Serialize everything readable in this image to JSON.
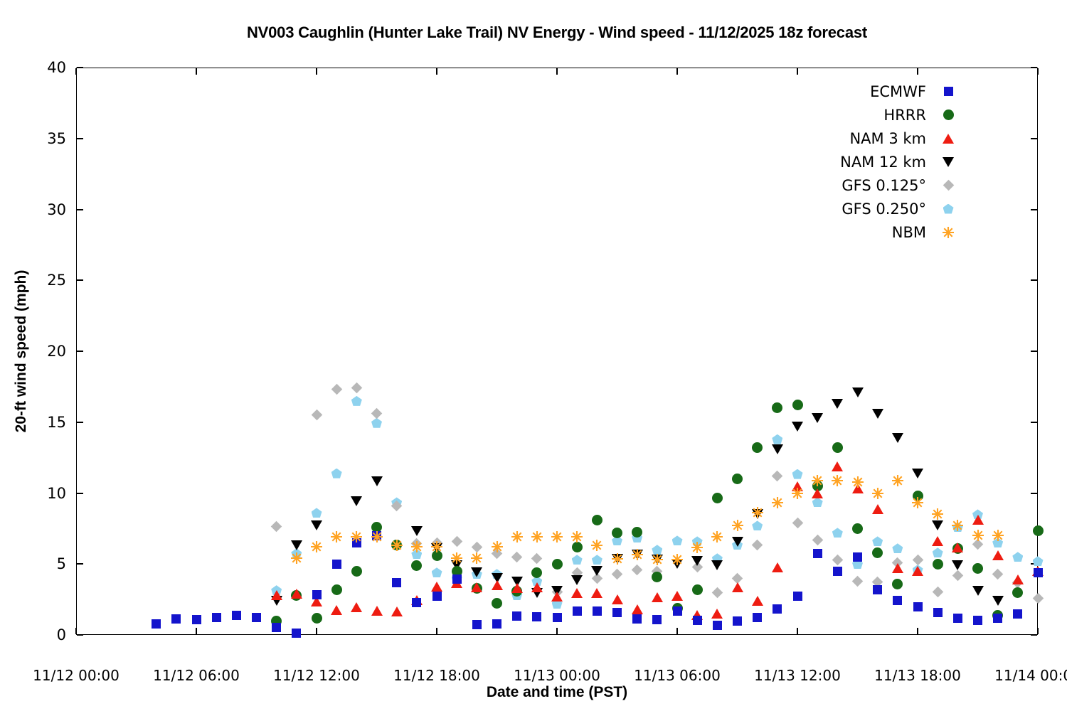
{
  "title": {
    "text": "NV003 Caughlin (Hunter Lake Trail) NV Energy - Wind speed - 11/12/2025 18z forecast"
  },
  "axes": {
    "x_label": "Date and time (PST)",
    "y_label": "20-ft wind speed (mph)",
    "x_ticks": [
      {
        "hour": 0,
        "label": "11/12 00:00"
      },
      {
        "hour": 6,
        "label": "11/12 06:00"
      },
      {
        "hour": 12,
        "label": "11/12 12:00"
      },
      {
        "hour": 18,
        "label": "11/12 18:00"
      },
      {
        "hour": 24,
        "label": "11/13 00:00"
      },
      {
        "hour": 30,
        "label": "11/13 06:00"
      },
      {
        "hour": 36,
        "label": "11/13 12:00"
      },
      {
        "hour": 42,
        "label": "11/13 18:00"
      },
      {
        "hour": 48,
        "label": "11/14 00:00"
      }
    ],
    "y_ticks": [
      0,
      5,
      10,
      15,
      20,
      25,
      30,
      35,
      40
    ],
    "y_range": [
      0,
      40
    ],
    "x_range_hours": [
      0,
      48
    ]
  },
  "legend": {
    "items": [
      {
        "label": "ECMWF",
        "shape": "square",
        "color": "#1414cc"
      },
      {
        "label": "HRRR",
        "shape": "circle",
        "color": "#176a17"
      },
      {
        "label": "NAM 3 km",
        "shape": "triangle-up",
        "color": "#ee1c11"
      },
      {
        "label": "NAM 12 km",
        "shape": "triangle-down",
        "color": "#000000"
      },
      {
        "label": "GFS 0.125°",
        "shape": "diamond",
        "color": "#b8b8b8"
      },
      {
        "label": "GFS 0.250°",
        "shape": "pentagon",
        "color": "#8ed2ee"
      },
      {
        "label": "NBM",
        "shape": "asterisk",
        "color": "#ffa323"
      }
    ]
  },
  "chart_data": {
    "type": "scatter",
    "title": "NV003 Caughlin (Hunter Lake Trail) NV Energy - Wind speed - 11/12/2025 18z forecast",
    "xlabel": "Date and time (PST)",
    "ylabel": "20-ft wind speed (mph)",
    "x_unit": "hours since 11/12 00:00 PST",
    "ylim": [
      0,
      40
    ],
    "xlim_hours": [
      0,
      48
    ],
    "grid": false,
    "legend_position": "top-right-inside",
    "series": [
      {
        "name": "ECMWF",
        "shape": "square",
        "color": "#1414cc",
        "points": [
          [
            4,
            0.8
          ],
          [
            5,
            1.15
          ],
          [
            6,
            1.1
          ],
          [
            7,
            1.25
          ],
          [
            8,
            1.4
          ],
          [
            9,
            1.25
          ],
          [
            10,
            0.55
          ],
          [
            11,
            0.15
          ],
          [
            12,
            2.85
          ],
          [
            13,
            5.0
          ],
          [
            14,
            6.5
          ],
          [
            15,
            7.0
          ],
          [
            16,
            3.7
          ],
          [
            17,
            2.3
          ],
          [
            18,
            2.75
          ],
          [
            19,
            3.95
          ],
          [
            20,
            0.75
          ],
          [
            21,
            0.8
          ],
          [
            22,
            1.35
          ],
          [
            23,
            1.3
          ],
          [
            24,
            1.25
          ],
          [
            25,
            1.7
          ],
          [
            26,
            1.7
          ],
          [
            27,
            1.6
          ],
          [
            28,
            1.15
          ],
          [
            29,
            1.1
          ],
          [
            30,
            1.7
          ],
          [
            31,
            1.05
          ],
          [
            32,
            0.7
          ],
          [
            33,
            1.0
          ],
          [
            34,
            1.25
          ],
          [
            35,
            1.85
          ],
          [
            36,
            2.75
          ],
          [
            37,
            5.75
          ],
          [
            38,
            4.5
          ],
          [
            39,
            5.5
          ],
          [
            40,
            3.2
          ],
          [
            41,
            2.45
          ],
          [
            42,
            2.0
          ],
          [
            43,
            1.6
          ],
          [
            44,
            1.2
          ],
          [
            45,
            1.05
          ],
          [
            46,
            1.2
          ],
          [
            47,
            1.5
          ],
          [
            48,
            4.4
          ]
        ]
      },
      {
        "name": "HRRR",
        "shape": "circle",
        "color": "#176a17",
        "points": [
          [
            10,
            1.0
          ],
          [
            11,
            2.8
          ],
          [
            12,
            1.2
          ],
          [
            13,
            3.2
          ],
          [
            14,
            4.5
          ],
          [
            15,
            7.6
          ],
          [
            16,
            6.35
          ],
          [
            17,
            4.9
          ],
          [
            18,
            5.6
          ],
          [
            19,
            4.5
          ],
          [
            20,
            3.3
          ],
          [
            21,
            2.25
          ],
          [
            22,
            3.1
          ],
          [
            23,
            4.4
          ],
          [
            24,
            5.0
          ],
          [
            25,
            6.2
          ],
          [
            26,
            8.1
          ],
          [
            27,
            7.2
          ],
          [
            28,
            7.25
          ],
          [
            29,
            4.1
          ],
          [
            30,
            1.9
          ],
          [
            31,
            3.2
          ],
          [
            32,
            9.65
          ],
          [
            33,
            11.0
          ],
          [
            34,
            13.2
          ],
          [
            35,
            16.0
          ],
          [
            36,
            16.2
          ],
          [
            37,
            10.5
          ],
          [
            38,
            13.2
          ],
          [
            39,
            7.5
          ],
          [
            40,
            5.8
          ],
          [
            41,
            3.6
          ],
          [
            42,
            9.8
          ],
          [
            43,
            5.0
          ],
          [
            44,
            6.1
          ],
          [
            45,
            4.7
          ],
          [
            46,
            1.4
          ],
          [
            47,
            3.0
          ],
          [
            48,
            7.35
          ]
        ]
      },
      {
        "name": "NAM 3 km",
        "shape": "triangle-up",
        "color": "#ee1c11",
        "points": [
          [
            10,
            2.8
          ],
          [
            11,
            2.9
          ],
          [
            12,
            2.35
          ],
          [
            13,
            1.75
          ],
          [
            14,
            1.95
          ],
          [
            15,
            1.7
          ],
          [
            16,
            1.65
          ],
          [
            17,
            2.45
          ],
          [
            18,
            3.4
          ],
          [
            19,
            3.65
          ],
          [
            20,
            3.35
          ],
          [
            21,
            3.5
          ],
          [
            22,
            3.3
          ],
          [
            23,
            3.35
          ],
          [
            24,
            2.7
          ],
          [
            25,
            2.95
          ],
          [
            26,
            2.95
          ],
          [
            27,
            2.5
          ],
          [
            28,
            1.8
          ],
          [
            29,
            2.65
          ],
          [
            30,
            2.75
          ],
          [
            31,
            1.4
          ],
          [
            32,
            1.5
          ],
          [
            33,
            3.35
          ],
          [
            34,
            2.4
          ],
          [
            35,
            4.75
          ],
          [
            36,
            10.5
          ],
          [
            37,
            10.0
          ],
          [
            38,
            11.9
          ],
          [
            39,
            10.35
          ],
          [
            40,
            8.85
          ],
          [
            41,
            4.7
          ],
          [
            42,
            4.5
          ],
          [
            43,
            6.6
          ],
          [
            44,
            6.15
          ],
          [
            45,
            8.1
          ],
          [
            46,
            5.6
          ],
          [
            47,
            3.9
          ],
          [
            48,
            4.5
          ]
        ]
      },
      {
        "name": "NAM 12 km",
        "shape": "triangle-down",
        "color": "#000000",
        "points": [
          [
            10,
            2.4
          ],
          [
            11,
            6.3
          ],
          [
            12,
            7.7
          ],
          [
            14,
            9.4
          ],
          [
            15,
            10.85
          ],
          [
            17,
            7.3
          ],
          [
            18,
            6.1
          ],
          [
            19,
            4.9
          ],
          [
            20,
            4.4
          ],
          [
            21,
            4.0
          ],
          [
            22,
            3.75
          ],
          [
            23,
            2.95
          ],
          [
            24,
            3.1
          ],
          [
            25,
            3.85
          ],
          [
            26,
            4.5
          ],
          [
            27,
            5.35
          ],
          [
            28,
            5.65
          ],
          [
            29,
            5.3
          ],
          [
            30,
            5.0
          ],
          [
            31,
            5.2
          ],
          [
            32,
            4.9
          ],
          [
            33,
            6.55
          ],
          [
            34,
            8.5
          ],
          [
            35,
            13.1
          ],
          [
            36,
            14.7
          ],
          [
            37,
            15.3
          ],
          [
            38,
            16.3
          ],
          [
            39,
            17.1
          ],
          [
            40,
            15.6
          ],
          [
            41,
            13.9
          ],
          [
            42,
            11.4
          ],
          [
            43,
            7.7
          ],
          [
            44,
            4.9
          ],
          [
            45,
            3.1
          ],
          [
            46,
            2.4
          ]
        ]
      },
      {
        "name": "GFS 0.125°",
        "shape": "diamond",
        "color": "#b8b8b8",
        "points": [
          [
            10,
            7.65
          ],
          [
            12,
            15.5
          ],
          [
            13,
            17.3
          ],
          [
            14,
            17.4
          ],
          [
            15,
            15.6
          ],
          [
            16,
            9.1
          ],
          [
            17,
            6.45
          ],
          [
            18,
            6.5
          ],
          [
            19,
            6.6
          ],
          [
            20,
            6.2
          ],
          [
            21,
            5.75
          ],
          [
            22,
            5.5
          ],
          [
            23,
            5.4
          ],
          [
            24,
            3.05
          ],
          [
            25,
            4.4
          ],
          [
            26,
            4.0
          ],
          [
            27,
            4.3
          ],
          [
            28,
            4.6
          ],
          [
            29,
            4.5
          ],
          [
            31,
            4.8
          ],
          [
            32,
            3.0
          ],
          [
            33,
            4.0
          ],
          [
            34,
            6.35
          ],
          [
            35,
            11.2
          ],
          [
            36,
            7.9
          ],
          [
            37,
            6.7
          ],
          [
            38,
            5.3
          ],
          [
            39,
            3.8
          ],
          [
            40,
            3.75
          ],
          [
            41,
            5.1
          ],
          [
            42,
            5.3
          ],
          [
            43,
            3.05
          ],
          [
            44,
            4.2
          ],
          [
            45,
            6.4
          ],
          [
            46,
            4.3
          ],
          [
            47,
            3.7
          ],
          [
            48,
            2.6
          ]
        ]
      },
      {
        "name": "GFS 0.250°",
        "shape": "pentagon",
        "color": "#8ed2ee",
        "points": [
          [
            10,
            3.15
          ],
          [
            11,
            5.75
          ],
          [
            12,
            8.6
          ],
          [
            13,
            11.4
          ],
          [
            14,
            16.5
          ],
          [
            15,
            14.95
          ],
          [
            16,
            9.35
          ],
          [
            17,
            5.7
          ],
          [
            18,
            4.4
          ],
          [
            19,
            4.0
          ],
          [
            20,
            4.3
          ],
          [
            21,
            4.3
          ],
          [
            22,
            2.8
          ],
          [
            23,
            3.8
          ],
          [
            24,
            2.2
          ],
          [
            25,
            5.3
          ],
          [
            26,
            5.3
          ],
          [
            27,
            6.65
          ],
          [
            28,
            6.85
          ],
          [
            29,
            6.0
          ],
          [
            30,
            6.65
          ],
          [
            31,
            6.6
          ],
          [
            32,
            5.4
          ],
          [
            33,
            6.35
          ],
          [
            34,
            7.7
          ],
          [
            35,
            13.8
          ],
          [
            36,
            11.35
          ],
          [
            37,
            9.35
          ],
          [
            38,
            7.2
          ],
          [
            39,
            5.0
          ],
          [
            40,
            6.6
          ],
          [
            41,
            6.1
          ],
          [
            42,
            4.6
          ],
          [
            43,
            5.8
          ],
          [
            44,
            7.6
          ],
          [
            45,
            8.5
          ],
          [
            46,
            6.5
          ],
          [
            47,
            5.5
          ],
          [
            48,
            5.2
          ]
        ]
      },
      {
        "name": "NBM",
        "shape": "asterisk",
        "color": "#ffa323",
        "points": [
          [
            11,
            5.4
          ],
          [
            12,
            6.2
          ],
          [
            13,
            6.9
          ],
          [
            14,
            6.9
          ],
          [
            15,
            6.9
          ],
          [
            16,
            6.3
          ],
          [
            17,
            6.2
          ],
          [
            18,
            6.2
          ],
          [
            19,
            5.4
          ],
          [
            20,
            5.4
          ],
          [
            21,
            6.2
          ],
          [
            22,
            6.9
          ],
          [
            23,
            6.9
          ],
          [
            24,
            6.9
          ],
          [
            25,
            6.9
          ],
          [
            26,
            6.3
          ],
          [
            27,
            5.35
          ],
          [
            28,
            5.65
          ],
          [
            29,
            5.3
          ],
          [
            30,
            5.3
          ],
          [
            31,
            6.15
          ],
          [
            32,
            6.9
          ],
          [
            33,
            7.7
          ],
          [
            34,
            8.6
          ],
          [
            35,
            9.3
          ],
          [
            36,
            10.0
          ],
          [
            37,
            10.9
          ],
          [
            38,
            10.9
          ],
          [
            39,
            10.8
          ],
          [
            40,
            10.0
          ],
          [
            41,
            10.9
          ],
          [
            42,
            9.3
          ],
          [
            43,
            8.5
          ],
          [
            44,
            7.7
          ],
          [
            45,
            7.0
          ],
          [
            46,
            7.0
          ]
        ]
      }
    ]
  }
}
